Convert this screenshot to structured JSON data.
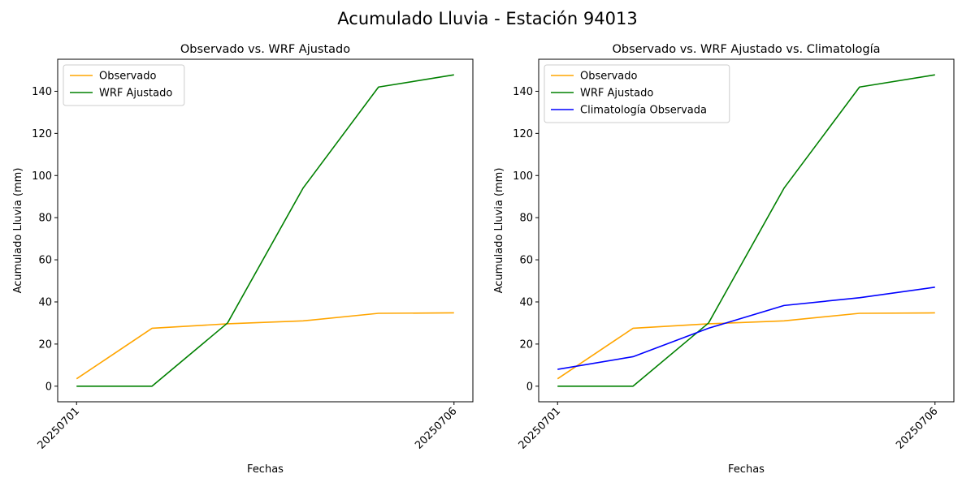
{
  "figure": {
    "suptitle": "Acumulado Lluvia - Estación 94013"
  },
  "chart_data": [
    {
      "type": "line",
      "title": "Observado vs. WRF Ajustado",
      "xlabel": "Fechas",
      "ylabel": "Acumulado Lluvia (mm)",
      "x": [
        1,
        2,
        3,
        4,
        5,
        6
      ],
      "xticks": [
        {
          "x": 1,
          "label": "20250701"
        },
        {
          "x": 6,
          "label": "20250706"
        }
      ],
      "xlim": [
        0.75,
        6.25
      ],
      "ylim": [
        -7.4,
        155.2
      ],
      "yticks": [
        0,
        20,
        40,
        60,
        80,
        100,
        120,
        140
      ],
      "legend_position": "upper-left",
      "grid": false,
      "series": [
        {
          "name": "Observado",
          "color": "#ffa500",
          "values": [
            3.5,
            27.5,
            29.6,
            31.0,
            34.6,
            34.8
          ]
        },
        {
          "name": "WRF Ajustado",
          "color": "#008000",
          "values": [
            0.0,
            0.0,
            30.0,
            94.0,
            142.0,
            147.8
          ]
        }
      ]
    },
    {
      "type": "line",
      "title": "Observado vs. WRF Ajustado vs. Climatología",
      "xlabel": "Fechas",
      "ylabel": "Acumulado Lluvia (mm)",
      "x": [
        1,
        2,
        3,
        4,
        5,
        6
      ],
      "xticks": [
        {
          "x": 1,
          "label": "20250701"
        },
        {
          "x": 6,
          "label": "20250706"
        }
      ],
      "xlim": [
        0.75,
        6.25
      ],
      "ylim": [
        -7.4,
        155.2
      ],
      "yticks": [
        0,
        20,
        40,
        60,
        80,
        100,
        120,
        140
      ],
      "legend_position": "upper-left",
      "grid": false,
      "series": [
        {
          "name": "Observado",
          "color": "#ffa500",
          "values": [
            3.5,
            27.5,
            29.6,
            31.0,
            34.6,
            34.8
          ]
        },
        {
          "name": "WRF Ajustado",
          "color": "#008000",
          "values": [
            0.0,
            0.0,
            30.0,
            94.0,
            142.0,
            147.8
          ]
        },
        {
          "name": "Climatología Observada",
          "color": "#0000ff",
          "values": [
            8.0,
            14.0,
            27.5,
            38.3,
            42.0,
            47.0
          ]
        }
      ]
    }
  ]
}
